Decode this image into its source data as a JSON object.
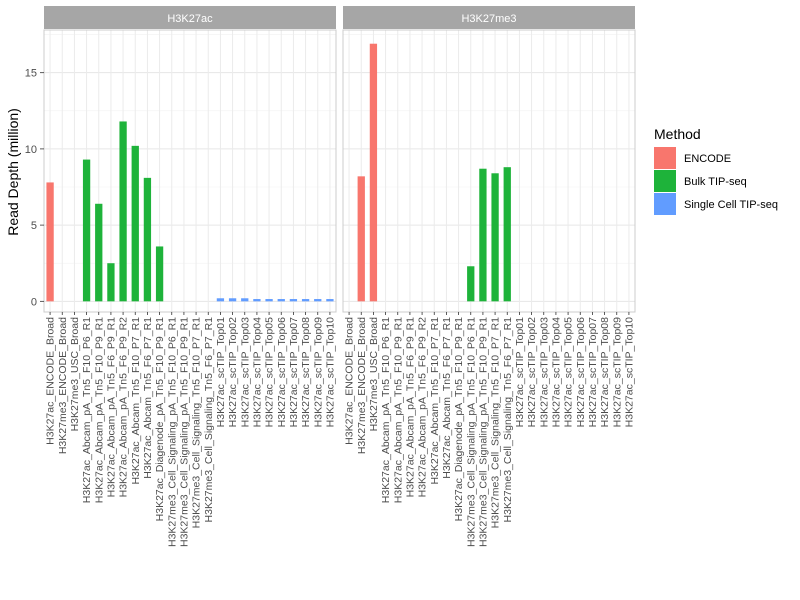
{
  "chart_data": {
    "type": "bar",
    "ylabel": "Read Depth (million)",
    "ylim": [
      -0.7,
      17.8
    ],
    "yticks": [
      0,
      5,
      10,
      15
    ],
    "legend": {
      "title": "Method",
      "position": "right",
      "entries": [
        {
          "name": "ENCODE",
          "color": "#F8766D"
        },
        {
          "name": "Bulk TIP-seq",
          "color": "#1EB33A"
        },
        {
          "name": "Single Cell TIP-seq",
          "color": "#619CFF"
        }
      ]
    },
    "categories": [
      "H3K27ac_ENCODE_Broad",
      "H3K27me3_ENCODE_Broad",
      "H3K27me3_USC_Broad",
      "H3K27ac_Abcam_pA_Tn5_F10_P6_R1",
      "H3K27ac_Abcam_pA_Tn5_F10_P9_R1",
      "H3K27ac_Abcam_pA_Tn5_F6_P9_R1",
      "H3K27ac_Abcam_pA_Tn5_F6_P9_R2",
      "H3K27ac_Abcam_Tn5_F10_P7_R1",
      "H3K27ac_Abcam_Tn5_F6_P7_R1",
      "H3K27ac_Diagenode_pA_Tn5_F10_P9_R1",
      "H3K27me3_Cell_Signaling_pA_Tn5_F10_P6_R1",
      "H3K27me3_Cell_Signaling_pA_Tn5_F10_P9_R1",
      "H3K27me3_Cell_Signaling_Tn5_F10_P7_R1",
      "H3K27me3_Cell_Signaling_Tn5_F6_P7_R1",
      "H3K27ac_scTIP_Top01",
      "H3K27ac_scTIP_Top02",
      "H3K27ac_scTIP_Top03",
      "H3K27ac_scTIP_Top04",
      "H3K27ac_scTIP_Top05",
      "H3K27ac_scTIP_Top06",
      "H3K27ac_scTIP_Top07",
      "H3K27ac_scTIP_Top08",
      "H3K27ac_scTIP_Top09",
      "H3K27ac_scTIP_Top10"
    ],
    "category_method": [
      0,
      0,
      0,
      1,
      1,
      1,
      1,
      1,
      1,
      1,
      1,
      1,
      1,
      1,
      2,
      2,
      2,
      2,
      2,
      2,
      2,
      2,
      2,
      2
    ],
    "panels": [
      {
        "title": "H3K27ac",
        "values": [
          7.8,
          null,
          null,
          9.3,
          6.4,
          2.5,
          11.8,
          10.2,
          8.1,
          3.6,
          null,
          null,
          null,
          null,
          0.2,
          0.2,
          0.2,
          0.15,
          0.15,
          0.15,
          0.15,
          0.15,
          0.15,
          0.15
        ]
      },
      {
        "title": "H3K27me3",
        "values": [
          null,
          8.2,
          16.9,
          null,
          null,
          null,
          null,
          null,
          null,
          null,
          2.3,
          8.7,
          8.4,
          8.8,
          null,
          null,
          null,
          null,
          null,
          null,
          null,
          null,
          null,
          null
        ]
      }
    ]
  }
}
